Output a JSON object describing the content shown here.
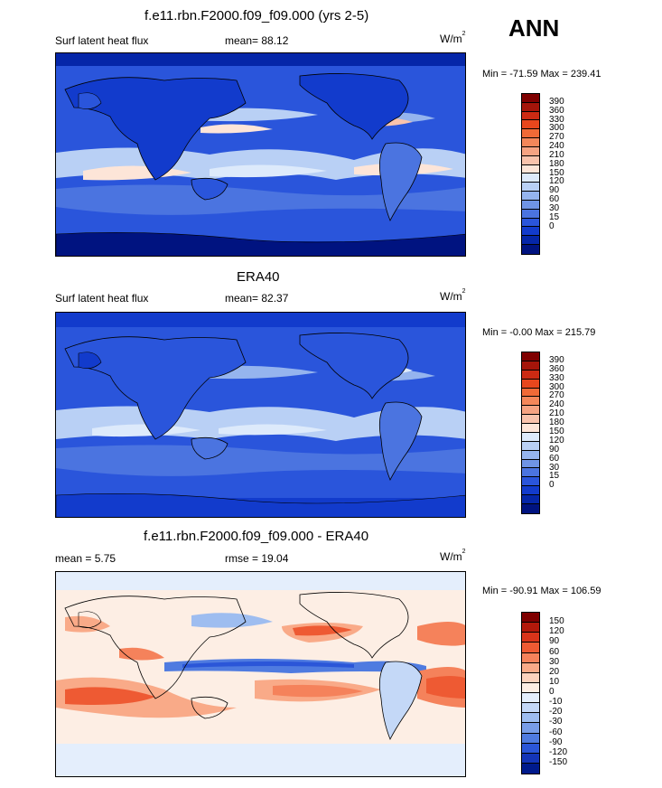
{
  "season": "ANN",
  "units_base": "W/m",
  "units_exp": "2",
  "panel_top": {
    "title": "f.e11.rbn.F2000.f09_f09.000 (yrs 2-5)",
    "left_label": "Surf latent heat flux",
    "stat_text": "mean=  88.12",
    "minmax": "Min = -71.59 Max = 239.41",
    "colorbar": {
      "colors": [
        "#7f0000",
        "#a5150a",
        "#cc2a13",
        "#e8471d",
        "#f06a37",
        "#f4875a",
        "#f6a382",
        "#f9c3ac",
        "#fde5d8",
        "#ddeafb",
        "#b9d0f5",
        "#95b4ee",
        "#6f94e6",
        "#4b74e0",
        "#2a55db",
        "#123bcc",
        "#0526a8",
        "#001380"
      ],
      "labels": [
        "390",
        "360",
        "330",
        "300",
        "270",
        "240",
        "210",
        "180",
        "150",
        "120",
        "90",
        "60",
        "30",
        "15",
        "0"
      ]
    }
  },
  "panel_mid": {
    "title": "ERA40",
    "left_label": "Surf latent heat flux",
    "stat_text": "mean=  82.37",
    "minmax": "Min =  -0.00 Max = 215.79",
    "colorbar": {
      "colors": [
        "#7f0000",
        "#a5150a",
        "#cc2a13",
        "#e8471d",
        "#f06a37",
        "#f4875a",
        "#f6a382",
        "#f9c3ac",
        "#fde5d8",
        "#ddeafb",
        "#b9d0f5",
        "#95b4ee",
        "#6f94e6",
        "#4b74e0",
        "#2a55db",
        "#123bcc",
        "#0526a8",
        "#001380"
      ],
      "labels": [
        "390",
        "360",
        "330",
        "300",
        "270",
        "240",
        "210",
        "180",
        "150",
        "120",
        "90",
        "60",
        "30",
        "15",
        "0"
      ]
    }
  },
  "panel_bot": {
    "title": "f.e11.rbn.F2000.f09_f09.000 - ERA40",
    "left_label": "mean =   5.75",
    "stat_text": "rmse =  19.04",
    "minmax": "Min = -90.91 Max = 106.59",
    "colorbar": {
      "colors": [
        "#7f0000",
        "#b3190b",
        "#d9341a",
        "#ee5a33",
        "#f5825b",
        "#f9aa88",
        "#fcd2bd",
        "#fdeee4",
        "#e4eefc",
        "#c4d8f7",
        "#9ebdf0",
        "#789de8",
        "#4f7be0",
        "#2b56d8",
        "#1435b8",
        "#001a8c"
      ],
      "labels": [
        "150",
        "120",
        "90",
        "60",
        "30",
        "20",
        "10",
        "0",
        "-10",
        "-20",
        "-30",
        "-60",
        "-90",
        "-120",
        "-150"
      ]
    }
  }
}
